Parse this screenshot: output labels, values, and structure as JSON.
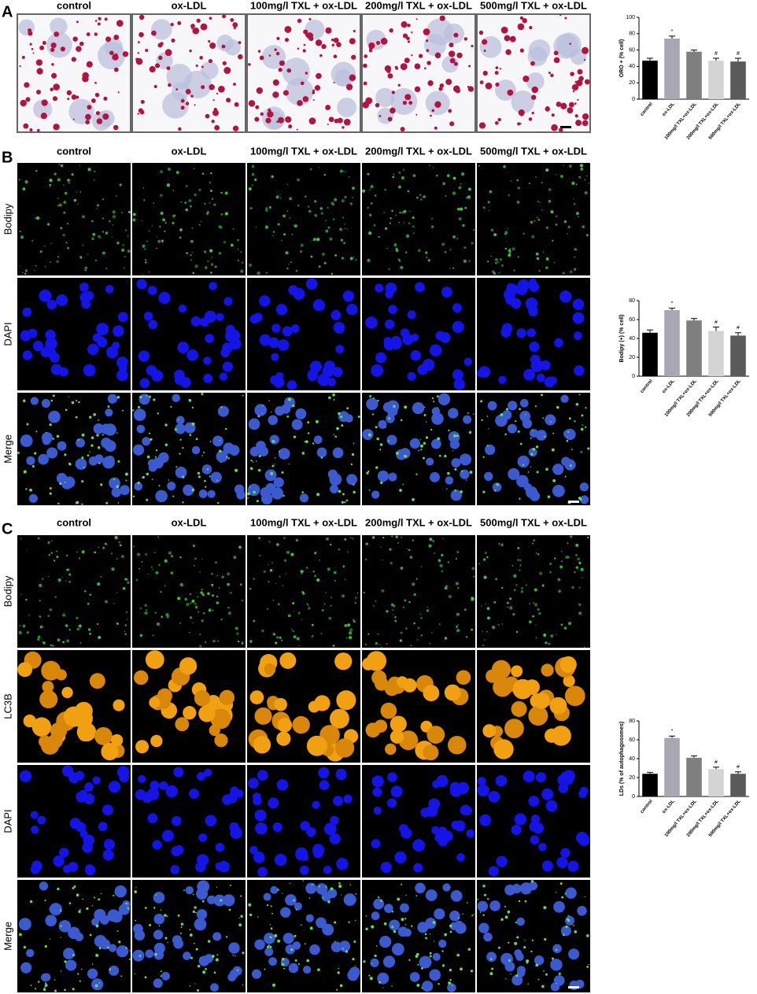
{
  "panels": [
    {
      "label": "A",
      "columns": [
        "control",
        "ox-LDL",
        "100mg/l TXL + ox-LDL",
        "200mg/l TXL + ox-LDL",
        "500mg/l TXL + ox-LDL"
      ]
    },
    {
      "label": "B",
      "columns": [
        "control",
        "ox-LDL",
        "100mg/l TXL + ox-LDL",
        "200mg/l TXL + ox-LDL",
        "500mg/l TXL + ox-LDL"
      ],
      "rows": [
        "Bodipy",
        "DAPI",
        "Merge"
      ]
    },
    {
      "label": "C",
      "columns": [
        "control",
        "ox-LDL",
        "100mg/l TXL + ox-LDL",
        "200mg/l TXL + ox-LDL",
        "500mg/l TXL + ox-LDL"
      ],
      "rows": [
        "Bodipy",
        "LC3B",
        "DAPI",
        "Merge"
      ]
    }
  ],
  "chart_data": [
    {
      "type": "bar",
      "ylabel": "ORO + (% cell)",
      "categories": [
        "control",
        "ox-LDL",
        "100mg/l TXL+ox-LDL",
        "200mg/l TXL+ox-LDL",
        "500mg/l TXL+ox-LDL"
      ],
      "values": [
        47,
        74,
        58,
        47,
        46
      ],
      "errors": [
        3,
        3,
        2,
        3,
        4
      ],
      "annotations": [
        null,
        "*",
        null,
        "#",
        "#"
      ],
      "colors": [
        "#000000",
        "#a8a8b4",
        "#7f7f7f",
        "#d4d4d4",
        "#5a5a5a"
      ],
      "ylim": [
        0,
        100
      ],
      "yticks": [
        0,
        20,
        40,
        60,
        80,
        100
      ]
    },
    {
      "type": "bar",
      "ylabel": "Bodipy (+)  (% cell)",
      "categories": [
        "control",
        "ox-LDL",
        "100mg/l TXL+ox-LDL",
        "200mg/l TXL+ox-LDL",
        "500mg/l TXL+ox-LDL"
      ],
      "values": [
        46,
        70,
        59,
        48,
        43
      ],
      "errors": [
        3,
        2,
        2,
        4,
        3
      ],
      "annotations": [
        null,
        "*",
        null,
        "#",
        "#"
      ],
      "colors": [
        "#000000",
        "#a8a8b4",
        "#7f7f7f",
        "#d4d4d4",
        "#5a5a5a"
      ],
      "ylim": [
        0,
        80
      ],
      "yticks": [
        0,
        20,
        40,
        60,
        80
      ]
    },
    {
      "type": "bar",
      "ylabel": "LDs (% of autophagosomes)",
      "categories": [
        "control",
        "ox-LDL",
        "100mg/l TXL+ox-LDL",
        "200mg/l TXL+ox-LDL",
        "500mg/l TXL+ox-LDL"
      ],
      "values": [
        24,
        62,
        41,
        29,
        24
      ],
      "errors": [
        1.5,
        2,
        2,
        2,
        2
      ],
      "annotations": [
        null,
        "*",
        null,
        "#",
        "#"
      ],
      "colors": [
        "#000000",
        "#a8a8b4",
        "#7f7f7f",
        "#d4d4d4",
        "#5a5a5a"
      ],
      "ylim": [
        0,
        80
      ],
      "yticks": [
        0,
        20,
        40,
        60,
        80
      ]
    }
  ]
}
